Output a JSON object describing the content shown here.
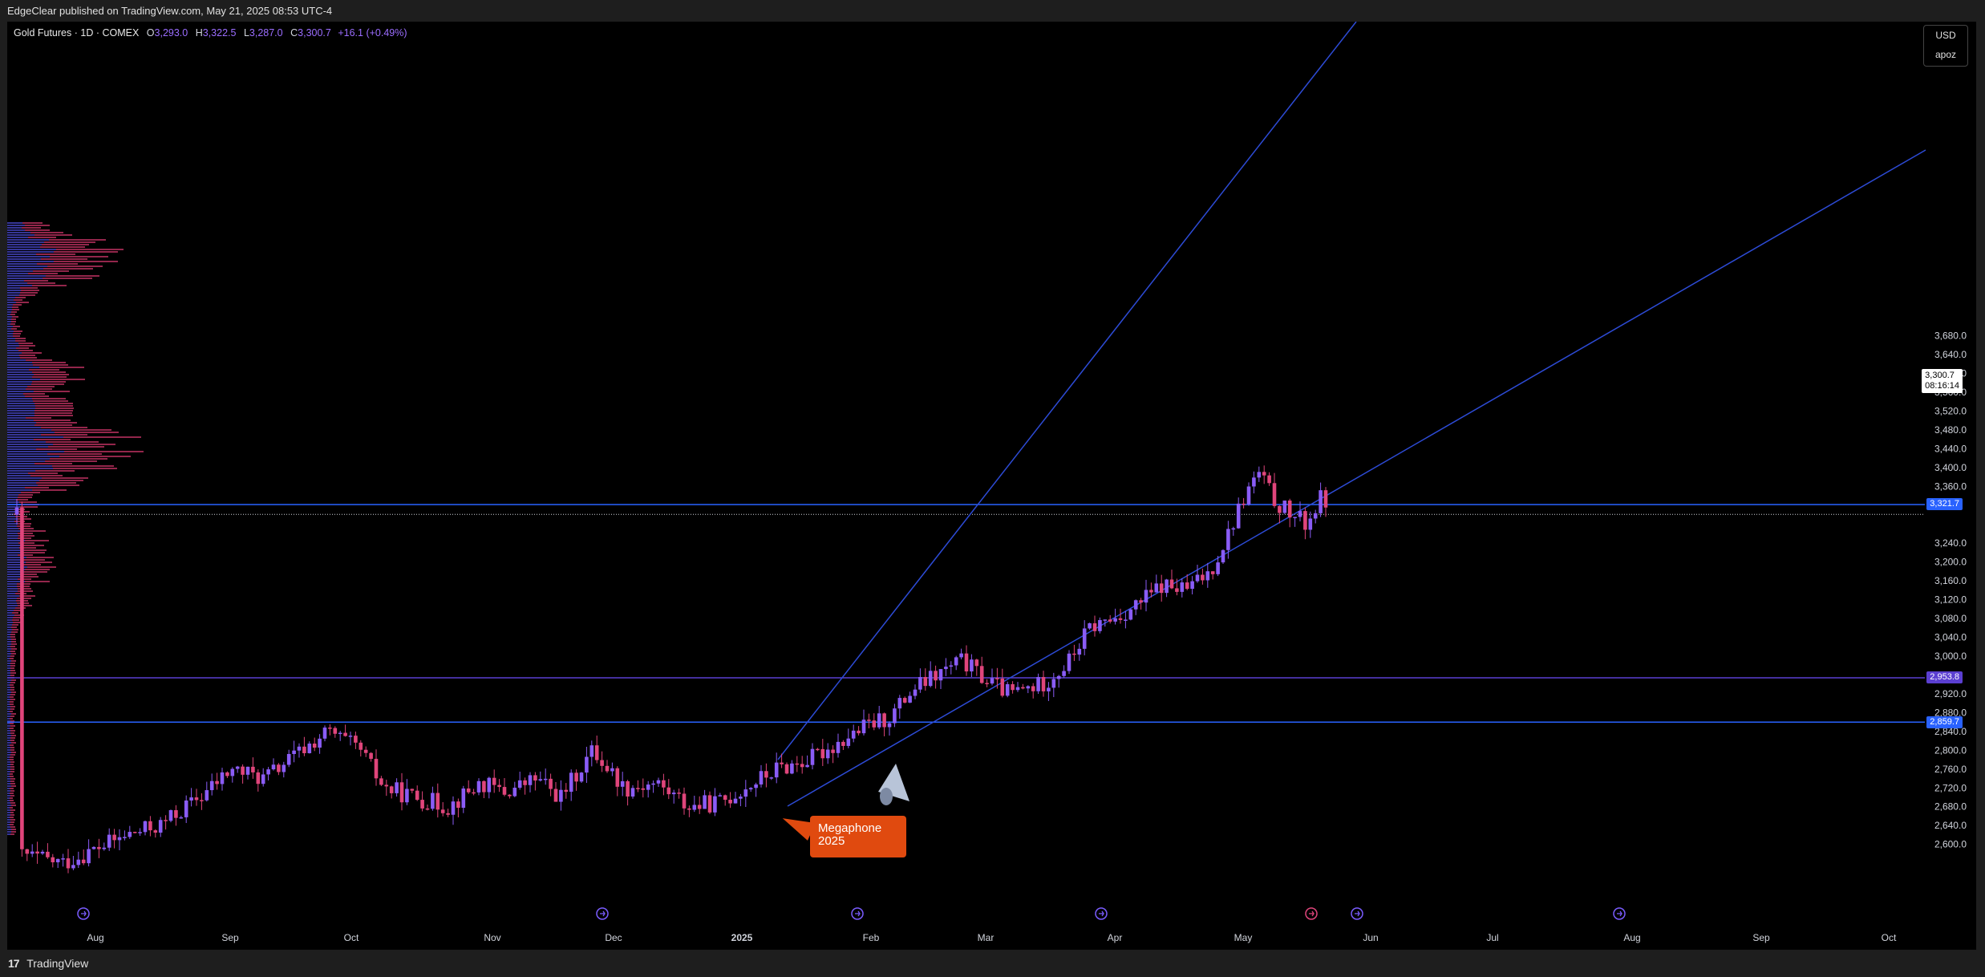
{
  "header": {
    "publish_line": "EdgeClear published on TradingView.com, May 21, 2025 08:53 UTC-4"
  },
  "legend": {
    "symbol": "Gold Futures · 1D · COMEX",
    "open_label": "O",
    "open": "3,293.0",
    "high_label": "H",
    "high": "3,322.5",
    "low_label": "L",
    "low": "3,287.0",
    "close_label": "C",
    "close": "3,300.7",
    "change": "+16.1 (+0.49%)"
  },
  "currency": {
    "code": "USD",
    "unit": "apoz"
  },
  "price_axis": {
    "ticks": [
      "3,680.0",
      "3,640.0",
      "3,600.0",
      "3,560.0",
      "3,520.0",
      "3,480.0",
      "3,440.0",
      "3,400.0",
      "3,360.0",
      "3,240.0",
      "3,200.0",
      "3,160.0",
      "3,120.0",
      "3,080.0",
      "3,040.0",
      "3,000.0",
      "2,920.0",
      "2,880.0",
      "2,840.0",
      "2,800.0",
      "2,760.0",
      "2,720.0",
      "2,680.0",
      "2,640.0",
      "2,600.0"
    ]
  },
  "time_axis": {
    "labels": [
      "Aug",
      "Sep",
      "Oct",
      "Nov",
      "Dec",
      "2025",
      "Feb",
      "Mar",
      "Apr",
      "May",
      "Jun",
      "Jul",
      "Aug",
      "Sep",
      "Oct"
    ]
  },
  "levels": [
    {
      "label": "3,321.7",
      "value": 3321.7,
      "color": "#2962ff"
    },
    {
      "label": "2,953.8",
      "value": 2953.8,
      "color": "#5b3fd1"
    },
    {
      "label": "2,859.7",
      "value": 2859.7,
      "color": "#2962ff"
    }
  ],
  "current_price": {
    "value": "3,300.7",
    "countdown": "08:16:14"
  },
  "annotation": {
    "line1": "Megaphone",
    "line2": "2025"
  },
  "footer": {
    "brand": "TradingView",
    "logo": "17"
  },
  "colors": {
    "up": "#8a5cf6",
    "down": "#e0457b",
    "trendline": "#2d4bd6"
  }
}
